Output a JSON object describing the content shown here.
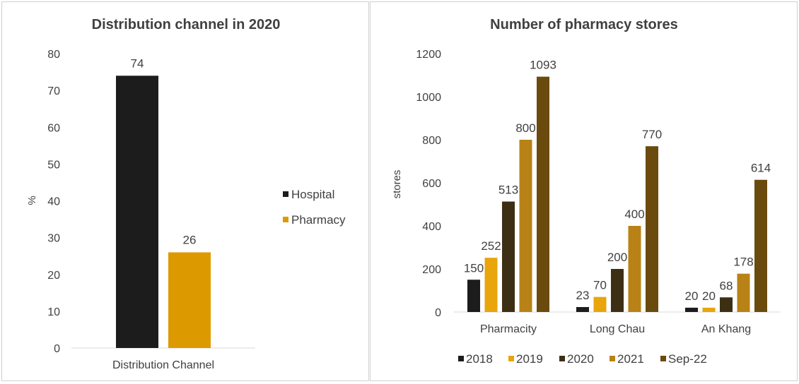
{
  "chart_data": [
    {
      "type": "bar",
      "title": "Distribution channel in 2020",
      "xlabel": "",
      "ylabel": "%",
      "ylim": [
        0,
        80
      ],
      "ytick_step": 10,
      "categories": [
        "Distribution Channel"
      ],
      "series": [
        {
          "name": "Hospital",
          "values": [
            74
          ],
          "color": "#1c1c1c"
        },
        {
          "name": "Pharmacy",
          "values": [
            26
          ],
          "color": "#dd9a00"
        }
      ],
      "legend": "right",
      "grid": false
    },
    {
      "type": "bar",
      "title": "Number of pharmacy stores",
      "xlabel": "",
      "ylabel": "stores",
      "ylim": [
        0,
        1200
      ],
      "ytick_step": 200,
      "categories": [
        "Pharmacity",
        "Long Chau",
        "An Khang"
      ],
      "series": [
        {
          "name": "2018",
          "values": [
            150,
            23,
            20
          ],
          "color": "#1c1c1c"
        },
        {
          "name": "2019",
          "values": [
            252,
            70,
            20
          ],
          "color": "#e8a50c"
        },
        {
          "name": "2020",
          "values": [
            513,
            200,
            68
          ],
          "color": "#3d2f14"
        },
        {
          "name": "2021",
          "values": [
            800,
            400,
            178
          ],
          "color": "#b98216"
        },
        {
          "name": "Sep-22",
          "values": [
            1093,
            770,
            614
          ],
          "color": "#6b4a0e"
        }
      ],
      "legend": "bottom",
      "grid": false
    }
  ]
}
